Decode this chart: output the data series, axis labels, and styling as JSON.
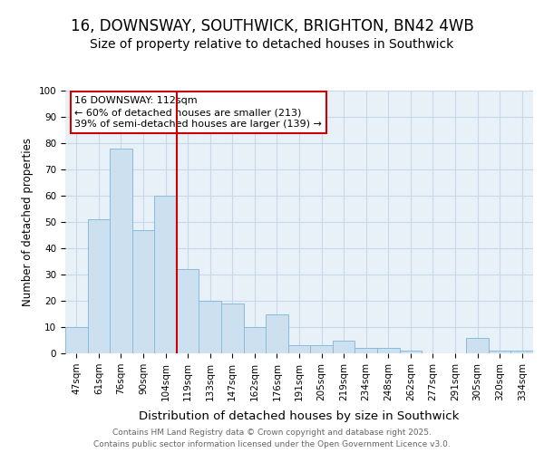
{
  "title": "16, DOWNSWAY, SOUTHWICK, BRIGHTON, BN42 4WB",
  "subtitle": "Size of property relative to detached houses in Southwick",
  "xlabel": "Distribution of detached houses by size in Southwick",
  "ylabel": "Number of detached properties",
  "categories": [
    "47sqm",
    "61sqm",
    "76sqm",
    "90sqm",
    "104sqm",
    "119sqm",
    "133sqm",
    "147sqm",
    "162sqm",
    "176sqm",
    "191sqm",
    "205sqm",
    "219sqm",
    "234sqm",
    "248sqm",
    "262sqm",
    "277sqm",
    "291sqm",
    "305sqm",
    "320sqm",
    "334sqm"
  ],
  "values": [
    10,
    51,
    78,
    47,
    60,
    32,
    20,
    19,
    10,
    15,
    3,
    3,
    5,
    2,
    2,
    1,
    0,
    0,
    6,
    1,
    1
  ],
  "bar_color": "#cce0f0",
  "bar_edge_color": "#88bbdd",
  "red_line_x": 4.5,
  "annotation_line1": "16 DOWNSWAY: 112sqm",
  "annotation_line2": "← 60% of detached houses are smaller (213)",
  "annotation_line3": "39% of semi-detached houses are larger (139) →",
  "annotation_box_color": "#ffffff",
  "annotation_box_edge": "#cc0000",
  "ylim": [
    0,
    100
  ],
  "yticks": [
    0,
    10,
    20,
    30,
    40,
    50,
    60,
    70,
    80,
    90,
    100
  ],
  "grid_color": "#c8d8e8",
  "bg_color": "#e8f0f8",
  "footer": "Contains HM Land Registry data © Crown copyright and database right 2025.\nContains public sector information licensed under the Open Government Licence v3.0.",
  "title_fontsize": 12,
  "subtitle_fontsize": 10,
  "xlabel_fontsize": 9.5,
  "ylabel_fontsize": 8.5,
  "tick_fontsize": 7.5,
  "annotation_fontsize": 8,
  "footer_fontsize": 6.5
}
